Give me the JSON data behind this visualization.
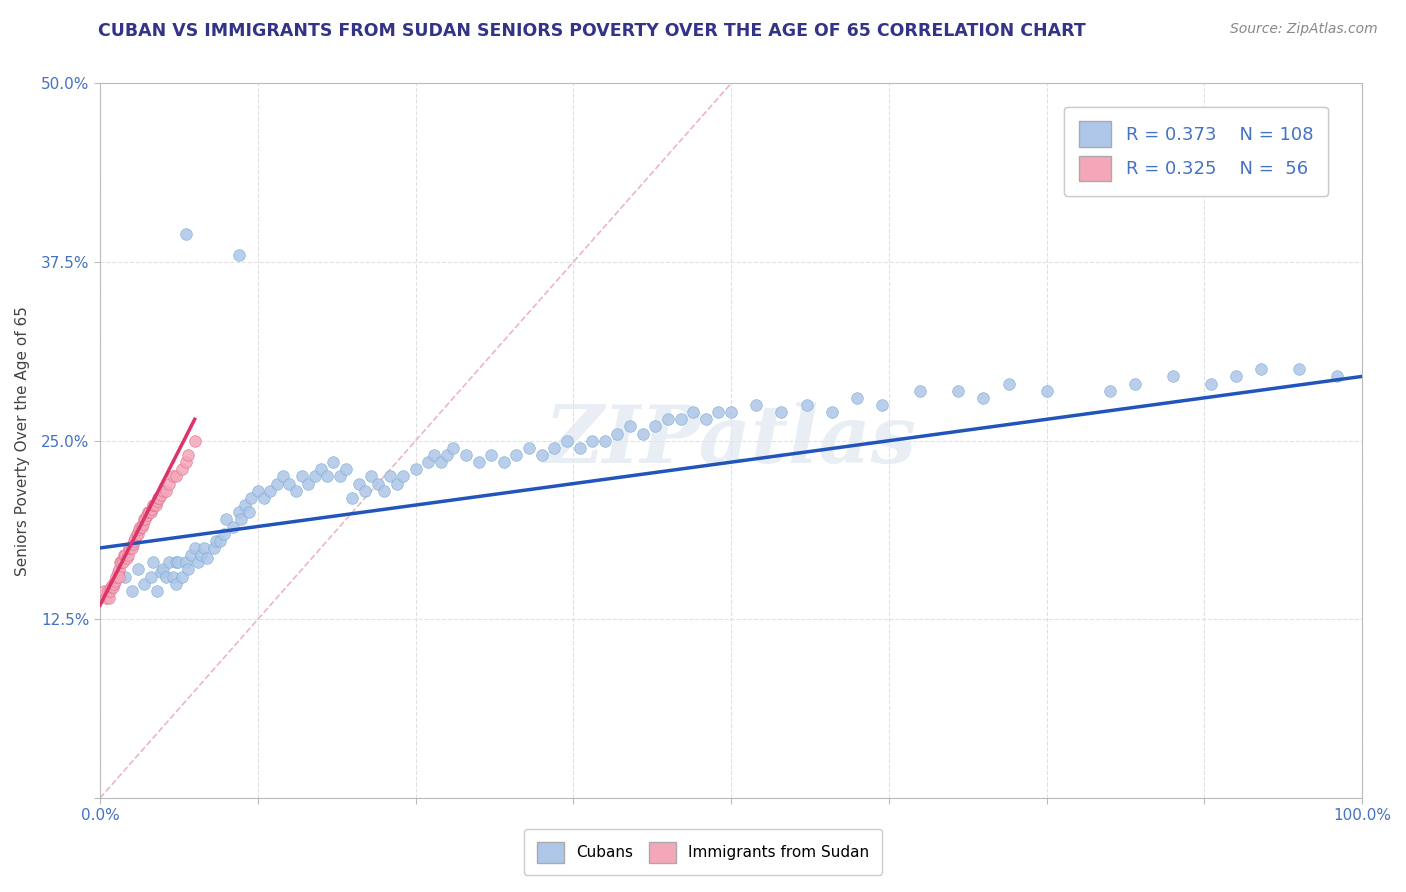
{
  "title": "CUBAN VS IMMIGRANTS FROM SUDAN SENIORS POVERTY OVER THE AGE OF 65 CORRELATION CHART",
  "source": "Source: ZipAtlas.com",
  "ylabel": "Seniors Poverty Over the Age of 65",
  "xlim": [
    0,
    1.0
  ],
  "ylim": [
    0,
    0.5
  ],
  "xtick_positions": [
    0.0,
    0.125,
    0.25,
    0.375,
    0.5,
    0.625,
    0.75,
    0.875,
    1.0
  ],
  "xticklabels": [
    "0.0%",
    "",
    "",
    "",
    "",
    "",
    "",
    "",
    "100.0%"
  ],
  "ytick_positions": [
    0.0,
    0.125,
    0.25,
    0.375,
    0.5
  ],
  "yticklabels": [
    "",
    "12.5%",
    "25.0%",
    "37.5%",
    "50.0%"
  ],
  "cuban_color": "#aec6e8",
  "cuban_edge": "#7aafd4",
  "sudan_color": "#f4a7b9",
  "sudan_edge": "#e07090",
  "trend_cuban_color": "#2255bb",
  "trend_sudan_color": "#dd3366",
  "diagonal_color": "#e8b0b8",
  "R_cuban": 0.373,
  "N_cuban": 108,
  "R_sudan": 0.325,
  "N_sudan": 56,
  "watermark": "ZIPatlas",
  "title_color": "#333388",
  "axis_color": "#4472c4",
  "source_color": "#888888",
  "cuban_x": [
    0.02,
    0.025,
    0.03,
    0.035,
    0.04,
    0.042,
    0.045,
    0.048,
    0.05,
    0.052,
    0.055,
    0.058,
    0.06,
    0.06,
    0.062,
    0.065,
    0.068,
    0.07,
    0.072,
    0.075,
    0.078,
    0.08,
    0.082,
    0.085,
    0.09,
    0.092,
    0.095,
    0.098,
    0.1,
    0.105,
    0.11,
    0.112,
    0.115,
    0.118,
    0.12,
    0.125,
    0.13,
    0.135,
    0.14,
    0.145,
    0.15,
    0.155,
    0.16,
    0.165,
    0.17,
    0.175,
    0.18,
    0.185,
    0.19,
    0.195,
    0.2,
    0.205,
    0.21,
    0.215,
    0.22,
    0.225,
    0.23,
    0.235,
    0.24,
    0.25,
    0.26,
    0.265,
    0.27,
    0.275,
    0.28,
    0.29,
    0.3,
    0.31,
    0.32,
    0.33,
    0.34,
    0.35,
    0.36,
    0.37,
    0.38,
    0.39,
    0.4,
    0.41,
    0.42,
    0.43,
    0.44,
    0.45,
    0.46,
    0.47,
    0.48,
    0.49,
    0.5,
    0.52,
    0.54,
    0.56,
    0.58,
    0.6,
    0.62,
    0.65,
    0.68,
    0.7,
    0.72,
    0.75,
    0.8,
    0.82,
    0.85,
    0.88,
    0.9,
    0.92,
    0.95,
    0.98,
    0.068,
    0.11
  ],
  "cuban_y": [
    0.155,
    0.145,
    0.16,
    0.15,
    0.155,
    0.165,
    0.145,
    0.158,
    0.16,
    0.155,
    0.165,
    0.155,
    0.15,
    0.165,
    0.165,
    0.155,
    0.165,
    0.16,
    0.17,
    0.175,
    0.165,
    0.17,
    0.175,
    0.168,
    0.175,
    0.18,
    0.18,
    0.185,
    0.195,
    0.19,
    0.2,
    0.195,
    0.205,
    0.2,
    0.21,
    0.215,
    0.21,
    0.215,
    0.22,
    0.225,
    0.22,
    0.215,
    0.225,
    0.22,
    0.225,
    0.23,
    0.225,
    0.235,
    0.225,
    0.23,
    0.21,
    0.22,
    0.215,
    0.225,
    0.22,
    0.215,
    0.225,
    0.22,
    0.225,
    0.23,
    0.235,
    0.24,
    0.235,
    0.24,
    0.245,
    0.24,
    0.235,
    0.24,
    0.235,
    0.24,
    0.245,
    0.24,
    0.245,
    0.25,
    0.245,
    0.25,
    0.25,
    0.255,
    0.26,
    0.255,
    0.26,
    0.265,
    0.265,
    0.27,
    0.265,
    0.27,
    0.27,
    0.275,
    0.27,
    0.275,
    0.27,
    0.28,
    0.275,
    0.285,
    0.285,
    0.28,
    0.29,
    0.285,
    0.285,
    0.29,
    0.295,
    0.29,
    0.295,
    0.3,
    0.3,
    0.295,
    0.395,
    0.38
  ],
  "sudan_x": [
    0.003,
    0.005,
    0.006,
    0.007,
    0.008,
    0.009,
    0.01,
    0.01,
    0.011,
    0.012,
    0.013,
    0.014,
    0.015,
    0.015,
    0.016,
    0.017,
    0.018,
    0.019,
    0.02,
    0.021,
    0.022,
    0.023,
    0.024,
    0.025,
    0.026,
    0.027,
    0.028,
    0.029,
    0.03,
    0.031,
    0.032,
    0.033,
    0.034,
    0.035,
    0.036,
    0.037,
    0.038,
    0.039,
    0.04,
    0.041,
    0.042,
    0.043,
    0.044,
    0.045,
    0.046,
    0.047,
    0.048,
    0.05,
    0.052,
    0.055,
    0.058,
    0.06,
    0.065,
    0.068,
    0.07,
    0.075
  ],
  "sudan_y": [
    0.145,
    0.14,
    0.145,
    0.14,
    0.145,
    0.148,
    0.15,
    0.148,
    0.15,
    0.152,
    0.155,
    0.158,
    0.16,
    0.155,
    0.165,
    0.165,
    0.165,
    0.17,
    0.17,
    0.168,
    0.17,
    0.175,
    0.175,
    0.175,
    0.178,
    0.18,
    0.182,
    0.185,
    0.185,
    0.188,
    0.19,
    0.19,
    0.192,
    0.195,
    0.195,
    0.198,
    0.2,
    0.2,
    0.2,
    0.202,
    0.205,
    0.205,
    0.205,
    0.208,
    0.21,
    0.21,
    0.212,
    0.215,
    0.215,
    0.22,
    0.225,
    0.225,
    0.23,
    0.235,
    0.24,
    0.25
  ]
}
